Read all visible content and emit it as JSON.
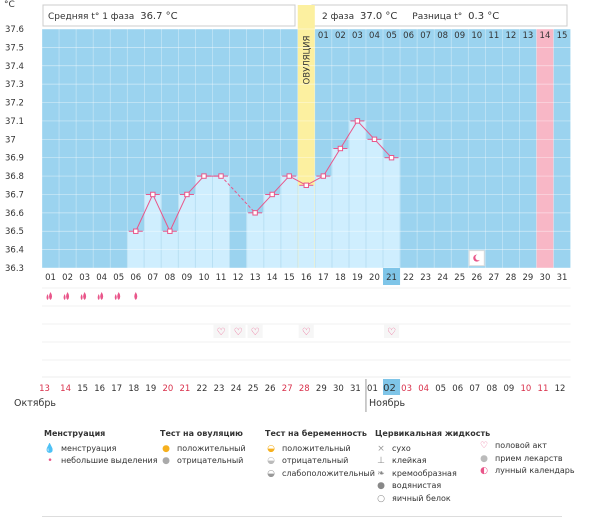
{
  "header": {
    "unit": "°C",
    "phase1_label": "Средняя t° 1 фаза",
    "phase1_value": "36.7 °C",
    "phase2_label": "2 фаза",
    "phase2_value": "37.0 °C",
    "diff_label": "Разница t°",
    "diff_value": "0.3 °C"
  },
  "ovulation_label": "ОВУЛЯЦИЯ",
  "chart_data": {
    "type": "line",
    "ylabel": "°C",
    "ylim": [
      36.3,
      37.6
    ],
    "yticks": [
      "37.6",
      "37.5",
      "37.4",
      "37.3",
      "37.2",
      "37.1",
      "37",
      "36.9",
      "36.8",
      "36.7",
      "36.6",
      "36.5",
      "36.4",
      "36.3"
    ],
    "cycle_days": [
      "01",
      "02",
      "03",
      "04",
      "05",
      "06",
      "07",
      "08",
      "09",
      "10",
      "11",
      "12",
      "13",
      "14",
      "15",
      "16",
      "17",
      "18",
      "19",
      "20",
      "21",
      "22",
      "23",
      "24",
      "25",
      "26",
      "27",
      "28",
      "29",
      "30",
      "31"
    ],
    "top_row_days": [
      "01",
      "02",
      "03",
      "04",
      "05",
      "06",
      "07",
      "08",
      "09",
      "10",
      "11",
      "12",
      "13",
      "14",
      "15"
    ],
    "temperatures": [
      null,
      null,
      null,
      null,
      null,
      36.5,
      36.7,
      36.5,
      36.7,
      36.8,
      36.8,
      null,
      36.6,
      36.7,
      36.8,
      36.75,
      36.8,
      36.95,
      37.1,
      37.0,
      36.9,
      null,
      null,
      null,
      null,
      null,
      null,
      null,
      null,
      null,
      null
    ],
    "current_day": "21",
    "ovulation_day": "16",
    "highlight_day": "30",
    "moon_day": "26",
    "menstruation_days": [
      "01",
      "02",
      "03",
      "04",
      "05",
      "06"
    ],
    "intercourse_days": [
      "11",
      "12",
      "13",
      "16",
      "21"
    ],
    "dates": [
      "13",
      "14",
      "15",
      "16",
      "17",
      "18",
      "19",
      "20",
      "21",
      "22",
      "23",
      "24",
      "25",
      "26",
      "27",
      "28",
      "29",
      "30",
      "31",
      "01",
      "02",
      "03",
      "04",
      "05",
      "06",
      "07",
      "08",
      "09",
      "10",
      "11",
      "12"
    ],
    "red_date_indices": [
      0,
      1,
      7,
      8,
      14,
      15,
      21,
      22,
      28,
      29
    ],
    "today_date_index": 20,
    "month_left": "Октябрь",
    "month_right": "Ноябрь"
  },
  "colors": {
    "sky": "#9bd3ef",
    "bar": "#cfeefe",
    "line": "#e9568a",
    "ovulation": "#fcf0a0",
    "highlight": "#f8b7c6",
    "current": "#7fc5e8"
  },
  "legend": {
    "menstruation": {
      "title": "Менструация",
      "items": [
        "менструация",
        "небольшие выделения"
      ]
    },
    "ovulation_test": {
      "title": "Тест на овуляцию",
      "items": [
        "положительный",
        "отрицательный"
      ]
    },
    "pregnancy_test": {
      "title": "Тест на беременность",
      "items": [
        "положительный",
        "отрицательный",
        "слабоположительный"
      ]
    },
    "cervical": {
      "title": "Цервикальная жидкость",
      "items": [
        "сухо",
        "клейкая",
        "кремообразная",
        "водянистая",
        "яичный белок"
      ]
    },
    "other": {
      "items": [
        "половой акт",
        "прием лекарств",
        "лунный календарь"
      ]
    }
  }
}
